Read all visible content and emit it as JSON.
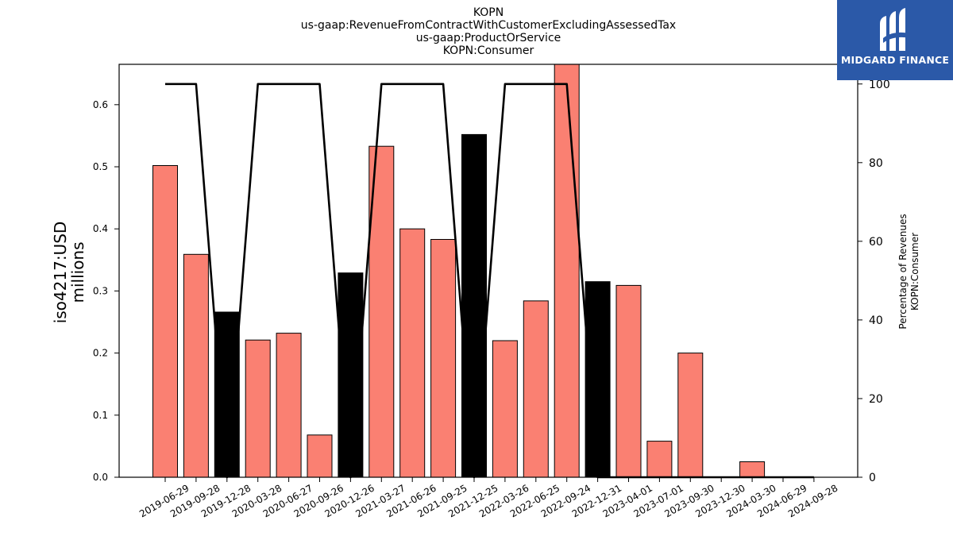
{
  "chart_data": {
    "type": "bar",
    "title_lines": [
      "KOPN",
      "us-gaap:RevenueFromContractWithCustomerExcludingAssessedTax",
      "us-gaap:ProductOrService",
      "KOPN:Consumer"
    ],
    "ylabel": [
      "iso4217:USD",
      "millions"
    ],
    "y2label": [
      "Percentage of Revenues",
      "KOPN:Consumer"
    ],
    "categories": [
      "2019-06-29",
      "2019-09-28",
      "2019-12-28",
      "2020-03-28",
      "2020-06-27",
      "2020-09-26",
      "2020-12-26",
      "2021-03-27",
      "2021-06-26",
      "2021-09-25",
      "2021-12-25",
      "2022-03-26",
      "2022-06-25",
      "2022-09-24",
      "2022-12-31",
      "2023-04-01",
      "2023-07-01",
      "2023-09-30",
      "2023-12-30",
      "2024-03-30",
      "2024-06-29",
      "2024-09-28"
    ],
    "values": [
      0.502,
      0.359,
      0.266,
      0.221,
      0.232,
      0.068,
      0.329,
      0.533,
      0.4,
      0.383,
      0.552,
      0.22,
      0.284,
      0.67,
      0.315,
      0.309,
      0.058,
      0.2,
      0.0,
      0.025,
      0.0,
      0.0
    ],
    "bar_highlight": [
      false,
      false,
      true,
      false,
      false,
      false,
      true,
      false,
      false,
      false,
      true,
      false,
      false,
      false,
      true,
      false,
      false,
      false,
      false,
      false,
      false,
      false
    ],
    "percentage": [
      100,
      100,
      0,
      100,
      100,
      100,
      0,
      100,
      100,
      100,
      0,
      100,
      100,
      100,
      0,
      0,
      0,
      0,
      0,
      0,
      0,
      0
    ],
    "ylim": [
      0,
      0.665
    ],
    "y2lim": [
      0,
      105
    ],
    "yticks": [
      "0.0",
      "0.1",
      "0.2",
      "0.3",
      "0.4",
      "0.5",
      "0.6"
    ],
    "y2ticks": [
      "0",
      "20",
      "40",
      "60",
      "80",
      "100"
    ],
    "colors": {
      "bar": "#fa8072",
      "bar_highlight": "#000000",
      "line": "#000000"
    }
  },
  "logo": {
    "text": "MIDGARD FINANCE",
    "bg": "#2b59a8"
  }
}
